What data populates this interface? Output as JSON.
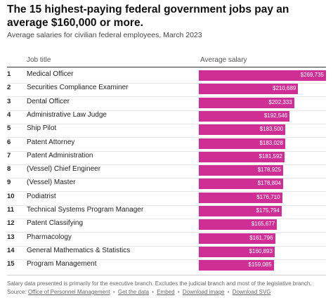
{
  "title": "The 15 highest-paying federal government jobs pay an average $160,000 or more.",
  "subtitle": "Average salaries for civilian federal employees, March 2023",
  "headers": {
    "job": "Job title",
    "salary": "Average salary"
  },
  "chart_data": {
    "type": "bar",
    "orientation": "horizontal",
    "categories": [
      "Medical Officer",
      "Securities Compliance Examiner",
      "Dental Officer",
      "Administrative Law Judge",
      "Ship Pilot",
      "Patent Attorney",
      "Patent Administration",
      "(Vessel) Chief Engineer",
      "(Vessel) Master",
      "Podiatrist",
      "Technical Systems Program Manager",
      "Patent Classifying",
      "Pharmacology",
      "General Mathematics & Statistics",
      "Program Management"
    ],
    "ranks": [
      "1",
      "2",
      "3",
      "4",
      "5",
      "6",
      "7",
      "8",
      "9",
      "10",
      "11",
      "12",
      "13",
      "14",
      "15"
    ],
    "values": [
      269735,
      210689,
      202333,
      192546,
      183500,
      183028,
      181592,
      178925,
      178804,
      176710,
      175794,
      165677,
      161796,
      160893,
      159085
    ],
    "labels": [
      "$269,735",
      "$210,689",
      "$202,333",
      "$192,546",
      "$183,500",
      "$183,028",
      "$181,592",
      "$178,925",
      "$178,804",
      "$176,710",
      "$175,794",
      "$165,677",
      "$161,796",
      "$160,893",
      "$159,085"
    ],
    "xlim": [
      0,
      269735
    ],
    "bar_color": "#cf2e95"
  },
  "footer": {
    "note": "Salary data presented is primarily for the executive branch. Excludes the judicial branch and most of the legislative branch.",
    "source_label": "Source:",
    "source_link": "Office of Personnel Management",
    "links": [
      "Get the data",
      "Embed",
      "Download image",
      "Download SVG"
    ],
    "separator": "•"
  }
}
